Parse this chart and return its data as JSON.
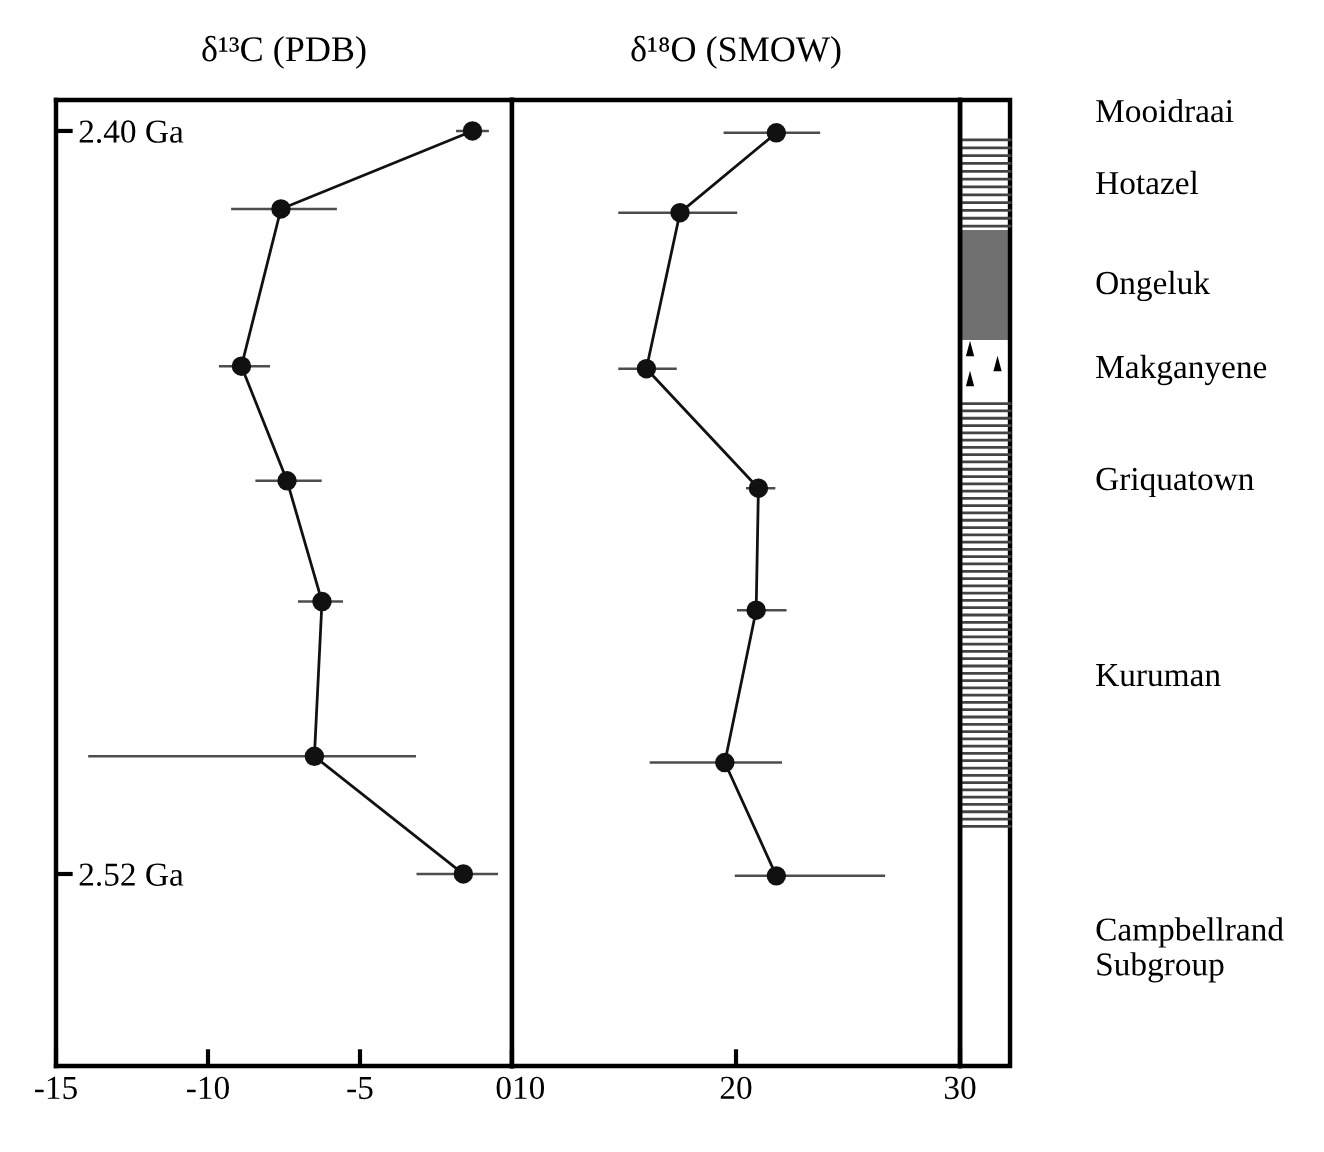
{
  "chart_data": [
    {
      "type": "line",
      "title": "δ¹³C (PDB)",
      "marker": "circle",
      "line_style": "solid",
      "grid": false,
      "legend": false,
      "xlim": [
        -15,
        0
      ],
      "xticks": [
        -15,
        -10,
        -5,
        0
      ],
      "ylim": [
        2.551,
        2.395
      ],
      "yticks": [
        {
          "value": 2.4,
          "label": "2.40 Ga"
        },
        {
          "value": 2.52,
          "label": "2.52 Ga"
        }
      ],
      "series": [
        {
          "color": "#111111",
          "x": [
            -1.3,
            -7.6,
            -8.9,
            -7.4,
            -6.25,
            -6.5,
            -1.6
          ],
          "values": [
            2.4,
            2.4126,
            2.438,
            2.4565,
            2.476,
            2.501,
            2.52
          ],
          "xerrors": [
            [
              -1.8,
              -0.8
            ],
            [
              -9.2,
              -5.8
            ],
            [
              -9.6,
              -8.0
            ],
            [
              -8.4,
              -6.3
            ],
            [
              -7.0,
              -5.6
            ],
            [
              -13.9,
              -3.2
            ],
            [
              -3.1,
              -0.5
            ]
          ]
        }
      ]
    },
    {
      "type": "line",
      "title": "δ¹⁸O (SMOW)",
      "marker": "circle",
      "line_style": "solid",
      "grid": false,
      "legend": false,
      "tick_labels": "x",
      "xlim": [
        10,
        30
      ],
      "xticks": [
        10,
        20,
        30
      ],
      "ylim": [
        2.551,
        2.395
      ],
      "series": [
        {
          "color": "#111111",
          "x": [
            21.8,
            17.5,
            16.0,
            21.0,
            20.9,
            19.5,
            21.8
          ],
          "values": [
            2.4003,
            2.4132,
            2.4384,
            2.4577,
            2.4774,
            2.502,
            2.5203
          ],
          "xerrors": [
            [
              19.5,
              23.7
            ],
            [
              14.8,
              20.0
            ],
            [
              14.8,
              17.3
            ],
            [
              20.5,
              21.7
            ],
            [
              20.1,
              22.2
            ],
            [
              16.2,
              22.0
            ],
            [
              20.0,
              26.6
            ]
          ]
        }
      ],
      "annotations": [
        "Mooidraai",
        "Hotazel",
        "Ongeluk",
        "Makganyene",
        "Griquatown",
        "Kuruman",
        "Campbellrand\nSubgroup"
      ]
    }
  ]
}
